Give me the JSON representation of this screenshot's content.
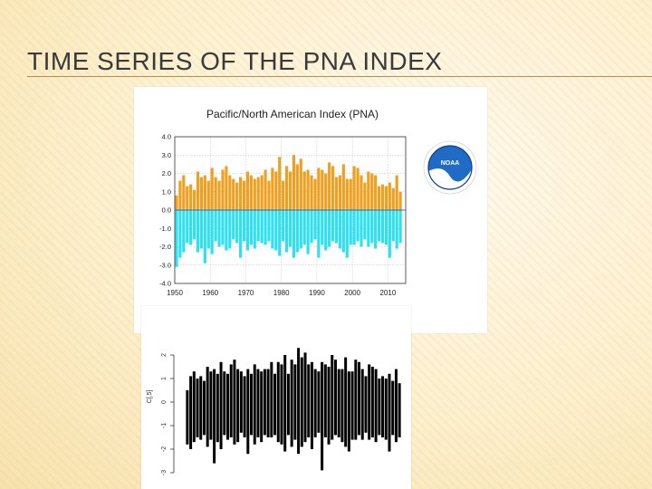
{
  "slide": {
    "title": "TIME SERIES OF THE PNA INDEX"
  },
  "charts": {
    "top": {
      "title": "Pacific/North American Index (PNA)",
      "logo_text": "NOAA",
      "colors": {
        "positive": "#f0a020",
        "negative": "#30e0f0",
        "zero_line": "#1f6fd0"
      }
    },
    "bottom": {
      "ylabel": "C[,5]",
      "colors": {
        "bars": "#000000"
      }
    }
  },
  "chart_data": [
    {
      "type": "bar",
      "title": "Pacific/North American Index (PNA)",
      "xlabel": "",
      "ylabel": "",
      "xlim": [
        1950,
        2015
      ],
      "ylim": [
        -4.0,
        4.0
      ],
      "x_ticks": [
        1950,
        1960,
        1970,
        1980,
        1990,
        2000,
        2010
      ],
      "x_tick_labels": [
        "1950",
        "1960",
        "1970",
        "1980",
        "1990",
        "2000",
        "2010"
      ],
      "y_ticks": [
        4.0,
        3.0,
        2.0,
        1.0,
        0.0,
        -1.0,
        -2.0,
        -3.0,
        -4.0
      ],
      "y_tick_labels": [
        "4.0",
        "3.0",
        "2.0",
        "1.0",
        "0.0",
        "-1.0",
        "-2.0",
        "-3.0",
        "-4.0"
      ],
      "grid": true,
      "series": [
        {
          "x": [
            1950.5,
            1951.5,
            1952.5,
            1953.5,
            1954.5,
            1955.5,
            1956.5,
            1957.5,
            1958.5,
            1959.5,
            1960.5,
            1961.5,
            1962.5,
            1963.5,
            1964.5,
            1965.5,
            1966.5,
            1967.5,
            1968.5,
            1969.5,
            1970.5,
            1971.5,
            1972.5,
            1973.5,
            1974.5,
            1975.5,
            1976.5,
            1977.5,
            1978.5,
            1979.5,
            1980.5,
            1981.5,
            1982.5,
            1983.5,
            1984.5,
            1985.5,
            1986.5,
            1987.5,
            1988.5,
            1989.5,
            1990.5,
            1991.5,
            1992.5,
            1993.5,
            1994.5,
            1995.5,
            1996.5,
            1997.5,
            1998.5,
            1999.5,
            2000.5,
            2001.5,
            2002.5,
            2003.5,
            2004.5,
            2005.5,
            2006.5,
            2007.5,
            2008.5,
            2009.5,
            2010.5,
            2011.5,
            2012.5,
            2013.5
          ],
          "max": [
            0.8,
            1.6,
            1.9,
            1.3,
            1.4,
            1.1,
            2.1,
            1.8,
            1.9,
            1.6,
            2.3,
            1.8,
            1.6,
            2.2,
            2.4,
            1.9,
            1.7,
            1.5,
            1.8,
            1.6,
            2.1,
            1.9,
            1.7,
            1.8,
            1.9,
            2.2,
            1.6,
            2.3,
            2.1,
            2.9,
            1.6,
            2.4,
            2.1,
            3.0,
            2.5,
            2.8,
            2.1,
            2.2,
            1.9,
            1.7,
            2.3,
            2.2,
            2.0,
            2.6,
            2.4,
            1.8,
            1.9,
            2.5,
            1.7,
            1.7,
            2.4,
            2.3,
            1.9,
            1.5,
            2.1,
            2.0,
            1.9,
            1.3,
            1.4,
            1.3,
            1.5,
            1.2,
            1.9,
            1.0
          ],
          "min": [
            -3.1,
            -2.6,
            -2.3,
            -1.8,
            -1.9,
            -1.6,
            -2.3,
            -2.1,
            -2.9,
            -2.1,
            -2.4,
            -1.7,
            -2.0,
            -1.9,
            -2.2,
            -2.1,
            -1.6,
            -1.8,
            -2.6,
            -1.7,
            -2.2,
            -1.9,
            -2.1,
            -1.7,
            -1.8,
            -1.9,
            -1.7,
            -2.1,
            -2.2,
            -2.5,
            -1.7,
            -2.3,
            -2.0,
            -2.6,
            -2.3,
            -2.1,
            -1.9,
            -2.4,
            -1.8,
            -1.6,
            -2.6,
            -1.9,
            -2.2,
            -2.0,
            -1.7,
            -1.8,
            -2.1,
            -2.3,
            -2.6,
            -1.9,
            -1.9,
            -1.7,
            -2.0,
            -1.6,
            -2.0,
            -1.8,
            -2.1,
            -1.7,
            -1.8,
            -1.9,
            -2.6,
            -1.7,
            -2.1,
            -1.8
          ]
        }
      ]
    },
    {
      "type": "bar",
      "title": "",
      "xlabel": "",
      "ylabel": "C[,5]",
      "ylim": [
        -3,
        3
      ],
      "y_ticks": [
        2,
        1,
        0,
        -1,
        -2,
        -3
      ],
      "y_tick_labels": [
        "2",
        "1",
        "0",
        "-1",
        "-2",
        "-3"
      ],
      "grid": false,
      "series": [
        {
          "max": [
            0.5,
            1.1,
            1.3,
            1.0,
            1.1,
            0.9,
            1.5,
            1.3,
            1.4,
            1.2,
            1.7,
            1.3,
            1.2,
            1.6,
            1.8,
            1.4,
            1.3,
            1.1,
            1.4,
            1.2,
            1.6,
            1.4,
            1.3,
            1.4,
            1.4,
            1.7,
            1.2,
            1.7,
            1.6,
            2.0,
            1.2,
            1.8,
            1.6,
            2.3,
            1.9,
            2.1,
            1.6,
            1.7,
            1.4,
            1.3,
            1.7,
            1.6,
            1.5,
            2.0,
            1.8,
            1.4,
            1.4,
            1.9,
            1.3,
            1.3,
            1.8,
            1.7,
            1.4,
            1.1,
            1.6,
            1.5,
            1.4,
            1.0,
            1.1,
            1.0,
            1.2,
            0.9,
            1.4,
            0.8
          ],
          "min": [
            -1.8,
            -2.0,
            -1.7,
            -1.5,
            -1.6,
            -1.4,
            -1.9,
            -1.6,
            -2.6,
            -1.7,
            -2.0,
            -1.4,
            -1.6,
            -1.5,
            -1.8,
            -1.7,
            -1.3,
            -1.5,
            -2.2,
            -1.4,
            -1.8,
            -1.5,
            -1.7,
            -1.4,
            -1.5,
            -1.5,
            -1.4,
            -1.7,
            -1.8,
            -2.1,
            -1.4,
            -1.9,
            -1.6,
            -2.2,
            -1.9,
            -1.7,
            -1.5,
            -2.0,
            -1.5,
            -1.3,
            -2.9,
            -1.5,
            -1.8,
            -1.6,
            -1.4,
            -1.5,
            -1.7,
            -1.9,
            -2.1,
            -1.6,
            -1.6,
            -1.4,
            -1.6,
            -1.3,
            -1.6,
            -1.5,
            -1.7,
            -1.4,
            -1.5,
            -1.6,
            -2.1,
            -1.4,
            -1.7,
            -1.5
          ]
        }
      ]
    }
  ]
}
